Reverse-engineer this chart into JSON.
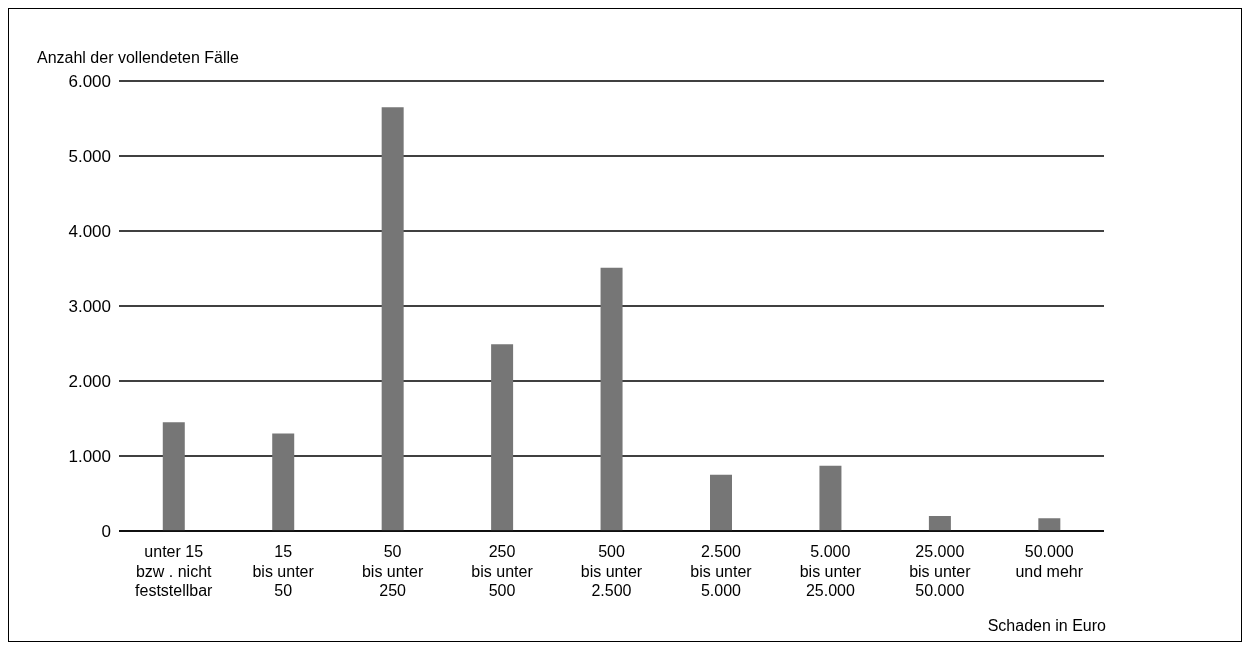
{
  "chart_data": {
    "type": "bar",
    "ylabel": "Anzahl der vollendeten Fälle",
    "xlabel": "Schaden in Euro",
    "categories": [
      "unter 15\nbzw . nicht\nfeststellbar",
      "15\nbis unter\n50",
      "50\nbis unter\n250",
      "250\nbis unter\n500",
      "500\nbis unter\n2.500",
      "2.500\nbis unter\n5.000",
      "5.000\nbis unter\n25.000",
      "25.000\nbis unter\n50.000",
      "50.000\nund mehr"
    ],
    "values": [
      1450,
      1300,
      5650,
      2490,
      3510,
      750,
      870,
      200,
      170
    ],
    "color": "#767676",
    "ylim": [
      0,
      6000
    ],
    "yticks": [
      {
        "value": 0,
        "label": "0"
      },
      {
        "value": 1000,
        "label": "1.000"
      },
      {
        "value": 2000,
        "label": "2.000"
      },
      {
        "value": 3000,
        "label": "3.000"
      },
      {
        "value": 4000,
        "label": "4.000"
      },
      {
        "value": 5000,
        "label": "5.000"
      },
      {
        "value": 6000,
        "label": "6.000"
      }
    ],
    "grid": "y",
    "legend": false
  }
}
